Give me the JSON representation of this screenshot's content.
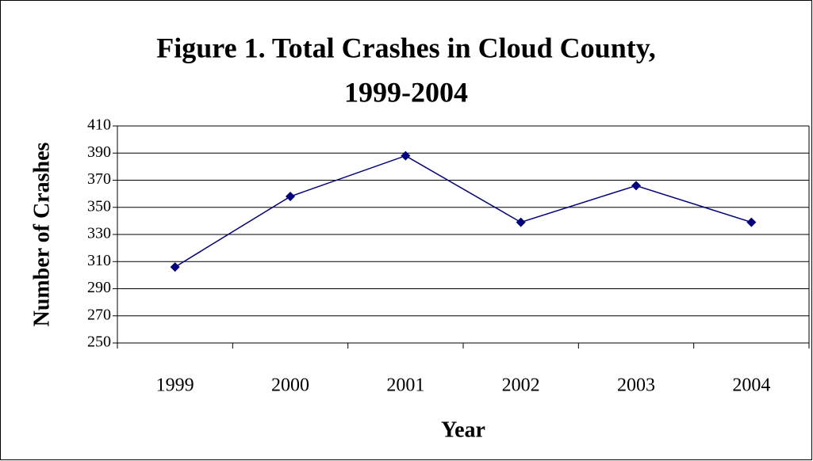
{
  "chart_data": {
    "type": "line",
    "title": [
      "Figure 1. Total Crashes in Cloud County,",
      "1999-2004"
    ],
    "x_label": "Year",
    "y_label": "Number of Crashes",
    "categories": [
      "1999",
      "2000",
      "2001",
      "2002",
      "2003",
      "2004"
    ],
    "series": [
      {
        "color": "#000080",
        "values": [
          306,
          358,
          388,
          339,
          366,
          339
        ]
      }
    ],
    "ylim": [
      250,
      410
    ],
    "yticks": [
      250,
      270,
      290,
      310,
      330,
      350,
      370,
      390,
      410
    ],
    "grid": true
  }
}
